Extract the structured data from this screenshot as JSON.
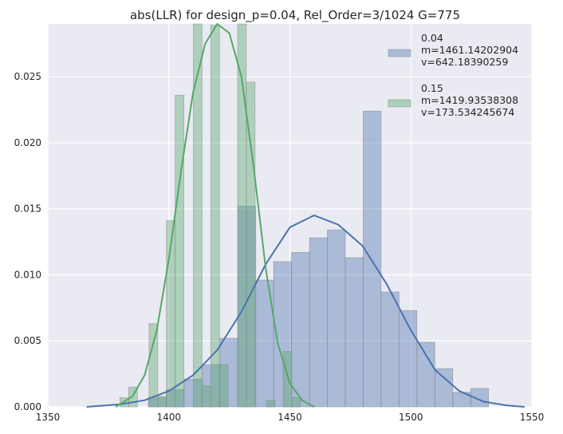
{
  "chart_data": {
    "type": "histogram",
    "title": "abs(LLR) for design_p=0.04, Rel_Order=3/1024 G=775",
    "xlabel": "",
    "ylabel": "",
    "xlim": [
      1350,
      1550
    ],
    "ylim": [
      0,
      0.029
    ],
    "xticks": [
      "1350",
      "1400",
      "1450",
      "1500",
      "1550"
    ],
    "yticks": [
      "0.000",
      "0.005",
      "0.010",
      "0.015",
      "0.020",
      "0.025"
    ],
    "grid": true,
    "legend_position": "top-right",
    "series": [
      {
        "name": "0.04",
        "legend_lines": [
          "0.04",
          "m=1461.14202904",
          "v=642.18390259"
        ],
        "color": "#4c72b0",
        "bins": [
          {
            "x0": 1391.5,
            "x1": 1398.9,
            "y": 0.0007
          },
          {
            "x0": 1398.9,
            "x1": 1406.3,
            "y": 0.0013
          },
          {
            "x0": 1406.3,
            "x1": 1413.7,
            "y": 0.0021
          },
          {
            "x0": 1413.7,
            "x1": 1421.1,
            "y": 0.0032
          },
          {
            "x0": 1421.1,
            "x1": 1428.5,
            "y": 0.0052
          },
          {
            "x0": 1428.5,
            "x1": 1435.9,
            "y": 0.0152
          },
          {
            "x0": 1435.9,
            "x1": 1443.3,
            "y": 0.0096
          },
          {
            "x0": 1443.3,
            "x1": 1450.7,
            "y": 0.011
          },
          {
            "x0": 1450.7,
            "x1": 1458.1,
            "y": 0.0117
          },
          {
            "x0": 1458.1,
            "x1": 1465.5,
            "y": 0.0128
          },
          {
            "x0": 1465.5,
            "x1": 1472.9,
            "y": 0.0134
          },
          {
            "x0": 1472.9,
            "x1": 1480.3,
            "y": 0.0113
          },
          {
            "x0": 1480.3,
            "x1": 1487.7,
            "y": 0.0224
          },
          {
            "x0": 1487.7,
            "x1": 1495.1,
            "y": 0.0087
          },
          {
            "x0": 1495.1,
            "x1": 1502.5,
            "y": 0.0073
          },
          {
            "x0": 1502.5,
            "x1": 1509.9,
            "y": 0.0049
          },
          {
            "x0": 1509.9,
            "x1": 1517.3,
            "y": 0.0029
          },
          {
            "x0": 1517.3,
            "x1": 1524.7,
            "y": 0.0011
          },
          {
            "x0": 1524.7,
            "x1": 1532.1,
            "y": 0.0014
          }
        ],
        "kde": [
          [
            1366,
            0.0
          ],
          [
            1380,
            0.0002
          ],
          [
            1390,
            0.0005
          ],
          [
            1400,
            0.0012
          ],
          [
            1410,
            0.0024
          ],
          [
            1420,
            0.0043
          ],
          [
            1430,
            0.0072
          ],
          [
            1440,
            0.0108
          ],
          [
            1450,
            0.0136
          ],
          [
            1460,
            0.0145
          ],
          [
            1470,
            0.0138
          ],
          [
            1480,
            0.0122
          ],
          [
            1490,
            0.0093
          ],
          [
            1500,
            0.0058
          ],
          [
            1510,
            0.0028
          ],
          [
            1520,
            0.0012
          ],
          [
            1530,
            0.0004
          ],
          [
            1540,
            0.0001
          ],
          [
            1547,
            0.0
          ]
        ]
      },
      {
        "name": "0.15",
        "legend_lines": [
          "0.15",
          "m=1419.93538308",
          "v=173.534245674"
        ],
        "color": "#55a868",
        "bins": [
          {
            "x0": 1379.8,
            "x1": 1383.4,
            "y": 0.0007
          },
          {
            "x0": 1383.4,
            "x1": 1387.0,
            "y": 0.0015
          },
          {
            "x0": 1391.8,
            "x1": 1395.4,
            "y": 0.0063
          },
          {
            "x0": 1395.4,
            "x1": 1399.0,
            "y": 0.0008
          },
          {
            "x0": 1399.0,
            "x1": 1402.6,
            "y": 0.0141
          },
          {
            "x0": 1402.6,
            "x1": 1406.2,
            "y": 0.0236
          },
          {
            "x0": 1410.1,
            "x1": 1413.7,
            "y": 0.0293
          },
          {
            "x0": 1413.7,
            "x1": 1417.3,
            "y": 0.0016
          },
          {
            "x0": 1417.3,
            "x1": 1420.9,
            "y": 0.0289
          },
          {
            "x0": 1420.9,
            "x1": 1424.5,
            "y": 0.0032
          },
          {
            "x0": 1428.4,
            "x1": 1432.0,
            "y": 0.0293
          },
          {
            "x0": 1432.0,
            "x1": 1435.6,
            "y": 0.0246
          },
          {
            "x0": 1440.3,
            "x1": 1443.9,
            "y": 0.0005
          },
          {
            "x0": 1447.2,
            "x1": 1450.8,
            "y": 0.0042
          },
          {
            "x0": 1450.8,
            "x1": 1454.4,
            "y": 0.0007
          }
        ],
        "kde": [
          [
            1378,
            0.0
          ],
          [
            1385,
            0.0008
          ],
          [
            1390,
            0.0024
          ],
          [
            1395,
            0.0058
          ],
          [
            1400,
            0.0112
          ],
          [
            1405,
            0.0178
          ],
          [
            1410,
            0.0238
          ],
          [
            1415,
            0.0275
          ],
          [
            1420,
            0.029
          ],
          [
            1425,
            0.0283
          ],
          [
            1430,
            0.025
          ],
          [
            1435,
            0.0182
          ],
          [
            1440,
            0.0105
          ],
          [
            1445,
            0.0048
          ],
          [
            1450,
            0.0018
          ],
          [
            1455,
            0.0005
          ],
          [
            1460,
            0.0
          ]
        ]
      }
    ]
  }
}
